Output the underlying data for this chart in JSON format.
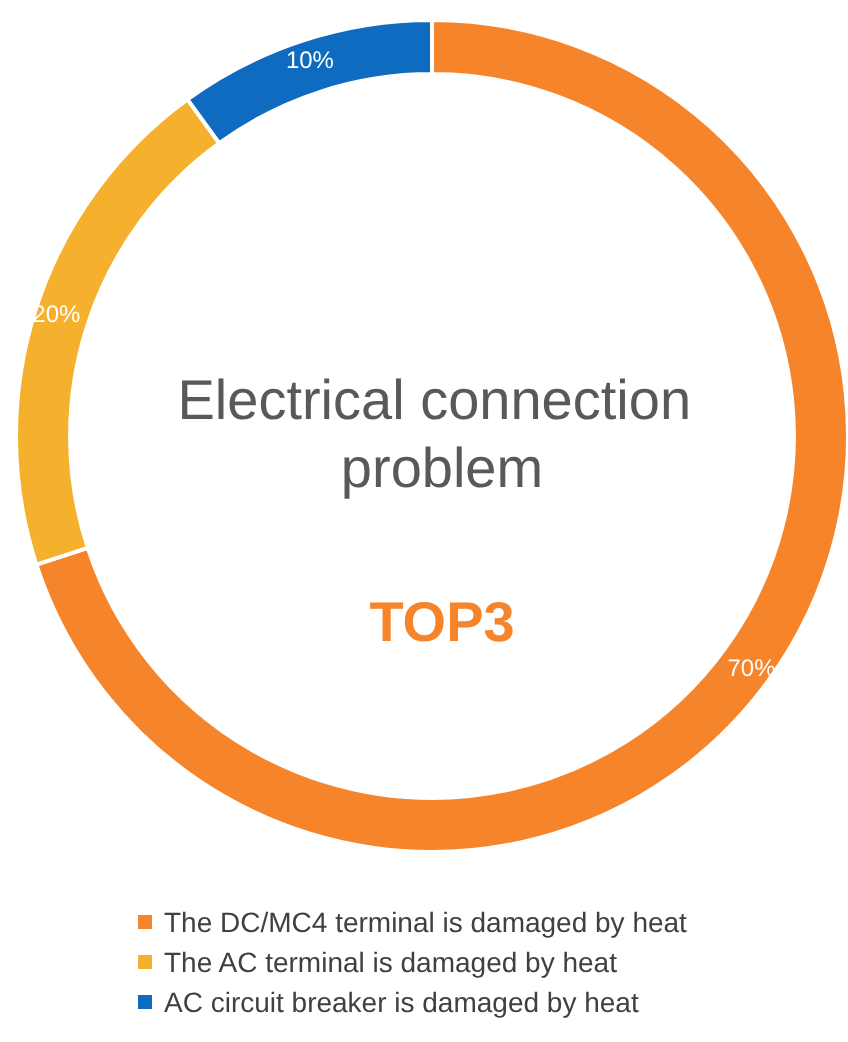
{
  "chart_data": {
    "type": "donut",
    "title": "Electrical connection problem",
    "subtitle": "TOP3",
    "categories": [
      "The DC/MC4 terminal is damaged by heat",
      "The AC terminal is damaged by heat",
      "AC circuit breaker is damaged by heat"
    ],
    "values": [
      70,
      20,
      10
    ],
    "colors": [
      "#f5842a",
      "#f5b12e",
      "#0f6bbf"
    ],
    "value_labels": [
      "70%",
      "20%",
      "10%"
    ],
    "legend": "bottom"
  }
}
